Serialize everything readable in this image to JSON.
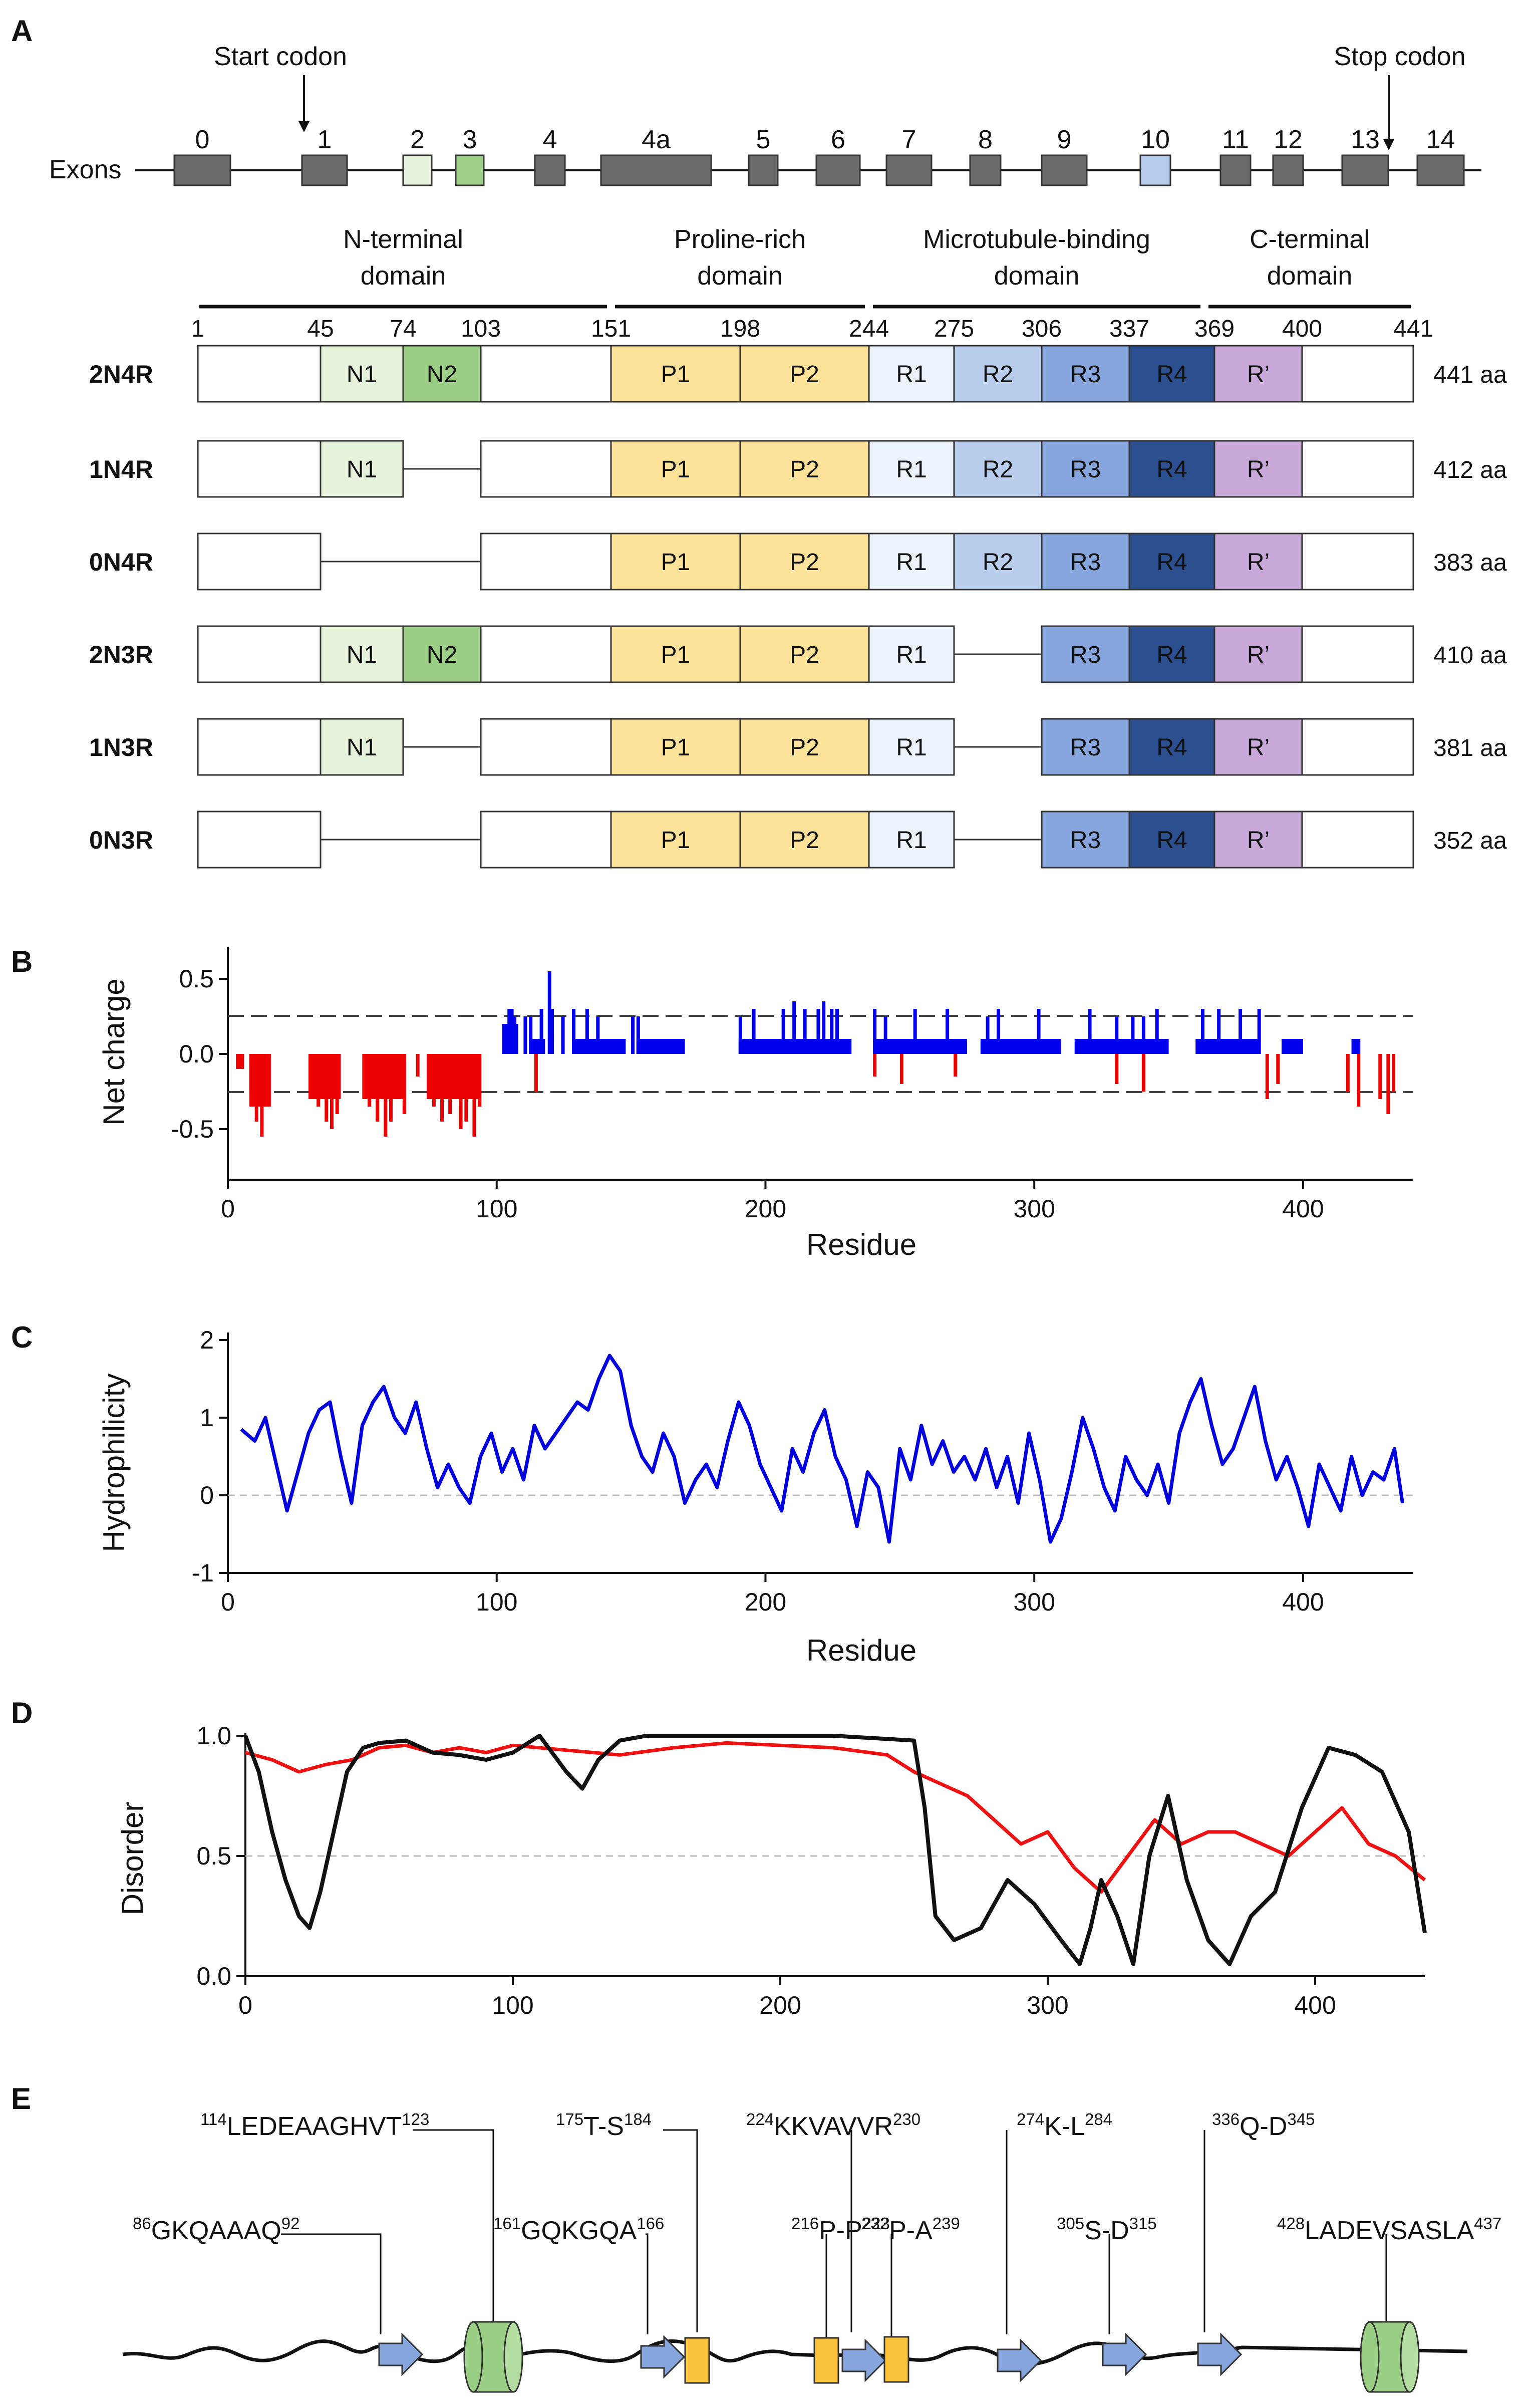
{
  "panels": {
    "A": {
      "label": "A",
      "start_codon": "Start codon",
      "stop_codon": "Stop codon",
      "exons_label": "Exons",
      "exons": [
        {
          "label": "0",
          "color": "#6b6b6b"
        },
        {
          "label": "1",
          "color": "#6b6b6b"
        },
        {
          "label": "2",
          "color": "#e8f3dd"
        },
        {
          "label": "3",
          "color": "#9fd08a"
        },
        {
          "label": "4",
          "color": "#6b6b6b"
        },
        {
          "label": "4a",
          "color": "#6b6b6b"
        },
        {
          "label": "5",
          "color": "#6b6b6b"
        },
        {
          "label": "6",
          "color": "#6b6b6b"
        },
        {
          "label": "7",
          "color": "#6b6b6b"
        },
        {
          "label": "8",
          "color": "#6b6b6b"
        },
        {
          "label": "9",
          "color": "#6b6b6b"
        },
        {
          "label": "10",
          "color": "#b7cdee"
        },
        {
          "label": "11",
          "color": "#6b6b6b"
        },
        {
          "label": "12",
          "color": "#6b6b6b"
        },
        {
          "label": "13",
          "color": "#6b6b6b"
        },
        {
          "label": "14",
          "color": "#6b6b6b"
        }
      ],
      "domains": [
        {
          "line1": "N-terminal",
          "line2": "domain"
        },
        {
          "line1": "Proline-rich",
          "line2": "domain"
        },
        {
          "line1": "Microtubule-binding",
          "line2": "domain"
        },
        {
          "line1": "C-terminal",
          "line2": "domain"
        }
      ],
      "residue_marks": [
        "1",
        "45",
        "74",
        "103",
        "151",
        "198",
        "244",
        "275",
        "306",
        "337",
        "369",
        "400",
        "441"
      ],
      "isoforms": [
        {
          "name": "2N4R",
          "length": "441 aa",
          "segments": [
            "N1",
            "N2",
            "P1",
            "P2",
            "R1",
            "R2",
            "R3",
            "R4",
            "R’"
          ]
        },
        {
          "name": "1N4R",
          "length": "412 aa",
          "segments": [
            "N1",
            "P1",
            "P2",
            "R1",
            "R2",
            "R3",
            "R4",
            "R’"
          ]
        },
        {
          "name": "0N4R",
          "length": "383 aa",
          "segments": [
            "P1",
            "P2",
            "R1",
            "R2",
            "R3",
            "R4",
            "R’"
          ]
        },
        {
          "name": "2N3R",
          "length": "410 aa",
          "segments": [
            "N1",
            "N2",
            "P1",
            "P2",
            "R1",
            "R3",
            "R4",
            "R’"
          ]
        },
        {
          "name": "1N3R",
          "length": "381 aa",
          "segments": [
            "N1",
            "P1",
            "P2",
            "R1",
            "R3",
            "R4",
            "R’"
          ]
        },
        {
          "name": "0N3R",
          "length": "352 aa",
          "segments": [
            "P1",
            "P2",
            "R1",
            "R3",
            "R4",
            "R’"
          ]
        }
      ],
      "segment_colors": {
        "N1": "#e6f2d9",
        "N2": "#9ccf86",
        "P1": "#fde39a",
        "P2": "#fde39a",
        "R1": "#edf3fb",
        "R2": "#b9cdec",
        "R3": "#86a6dd",
        "R4": "#2c4f8f",
        "R’": "#c9a9d9"
      }
    },
    "B": {
      "label": "B",
      "xlabel": "Residue",
      "ylabel": "Net charge"
    },
    "C": {
      "label": "C",
      "xlabel": "Residue",
      "ylabel": "Hydrophilicity"
    },
    "D": {
      "label": "D",
      "ylabel": "Disorder"
    },
    "E": {
      "label": "E",
      "annotations": [
        {
          "pre": "114",
          "seq": "LEDEAAGHVT",
          "post": "123"
        },
        {
          "pre": "175",
          "seq": "T-S",
          "post": "184"
        },
        {
          "pre": "224",
          "seq": "KKVAVVR",
          "post": "230"
        },
        {
          "pre": "274",
          "seq": "K-L",
          "post": "284"
        },
        {
          "pre": "336",
          "seq": "Q-D",
          "post": "345"
        },
        {
          "pre": "86",
          "seq": "GKQAAAQ",
          "post": "92"
        },
        {
          "pre": "161",
          "seq": "GQKGQA",
          "post": "166"
        },
        {
          "pre": "216",
          "seq": "P-P",
          "post": "223"
        },
        {
          "pre": "232",
          "seq": "P-A",
          "post": "239"
        },
        {
          "pre": "305",
          "seq": "S-D",
          "post": "315"
        },
        {
          "pre": "428",
          "seq": "LADEVSASLA",
          "post": "437"
        }
      ]
    }
  },
  "chart_data": [
    {
      "type": "bar",
      "panel": "B",
      "xlabel": "Residue",
      "ylabel": "Net charge",
      "xlim": [
        0,
        441
      ],
      "ylim": [
        -0.65,
        0.65
      ],
      "xticks": [
        "0",
        "100",
        "200",
        "300",
        "400"
      ],
      "yticks": [
        "0.5",
        "0.0",
        "-0.5"
      ],
      "reference_lines": [
        0.25,
        -0.25
      ],
      "colors": {
        "positive": "#0000ee",
        "negative": "#ee0000"
      },
      "positive_bars": [
        [
          104,
          0.3
        ],
        [
          105,
          0.3
        ],
        [
          106,
          0.25
        ],
        [
          110,
          0.25
        ],
        [
          112,
          0.25
        ],
        [
          116,
          0.3
        ],
        [
          119,
          0.55
        ],
        [
          120,
          0.3
        ],
        [
          124,
          0.25
        ],
        [
          128,
          0.3
        ],
        [
          133,
          0.3
        ],
        [
          137,
          0.25
        ],
        [
          150,
          0.25
        ],
        [
          152,
          0.25
        ],
        [
          190,
          0.25
        ],
        [
          195,
          0.3
        ],
        [
          206,
          0.3
        ],
        [
          210,
          0.35
        ],
        [
          214,
          0.3
        ],
        [
          219,
          0.3
        ],
        [
          221,
          0.35
        ],
        [
          224,
          0.3
        ],
        [
          226,
          0.3
        ],
        [
          240,
          0.3
        ],
        [
          244,
          0.25
        ],
        [
          255,
          0.3
        ],
        [
          267,
          0.3
        ],
        [
          282,
          0.25
        ],
        [
          286,
          0.3
        ],
        [
          301,
          0.3
        ],
        [
          320,
          0.3
        ],
        [
          330,
          0.25
        ],
        [
          336,
          0.25
        ],
        [
          340,
          0.25
        ],
        [
          345,
          0.3
        ],
        [
          362,
          0.3
        ],
        [
          368,
          0.3
        ],
        [
          376,
          0.3
        ],
        [
          383,
          0.3
        ],
        [
          420,
          0.1
        ]
      ],
      "negative_bars": [
        [
          8,
          -0.25
        ],
        [
          10,
          -0.45
        ],
        [
          12,
          -0.55
        ],
        [
          14,
          -0.35
        ],
        [
          30,
          -0.25
        ],
        [
          33,
          -0.35
        ],
        [
          36,
          -0.45
        ],
        [
          38,
          -0.5
        ],
        [
          40,
          -0.4
        ],
        [
          52,
          -0.35
        ],
        [
          55,
          -0.45
        ],
        [
          58,
          -0.55
        ],
        [
          60,
          -0.45
        ],
        [
          63,
          -0.3
        ],
        [
          65,
          -0.4
        ],
        [
          70,
          -0.15
        ],
        [
          76,
          -0.35
        ],
        [
          79,
          -0.45
        ],
        [
          82,
          -0.4
        ],
        [
          86,
          -0.5
        ],
        [
          88,
          -0.45
        ],
        [
          91,
          -0.55
        ],
        [
          93,
          -0.35
        ],
        [
          114,
          -0.25
        ],
        [
          240,
          -0.15
        ],
        [
          250,
          -0.2
        ],
        [
          270,
          -0.15
        ],
        [
          330,
          -0.2
        ],
        [
          340,
          -0.25
        ],
        [
          386,
          -0.3
        ],
        [
          390,
          -0.2
        ],
        [
          416,
          -0.25
        ],
        [
          420,
          -0.35
        ],
        [
          428,
          -0.3
        ],
        [
          431,
          -0.4
        ],
        [
          433,
          -0.25
        ]
      ]
    },
    {
      "type": "line",
      "panel": "C",
      "xlabel": "Residue",
      "ylabel": "Hydrophilicity",
      "xlim": [
        0,
        441
      ],
      "ylim": [
        -1,
        2
      ],
      "xticks": [
        "0",
        "100",
        "200",
        "300",
        "400"
      ],
      "yticks": [
        "2",
        "1",
        "0",
        "-1"
      ],
      "reference_line": 0,
      "series": [
        {
          "color": "#0000dd",
          "x": [
            5,
            10,
            14,
            18,
            22,
            26,
            30,
            34,
            38,
            42,
            46,
            50,
            54,
            58,
            62,
            66,
            70,
            74,
            78,
            82,
            86,
            90,
            94,
            98,
            102,
            106,
            110,
            114,
            118,
            122,
            126,
            130,
            134,
            138,
            142,
            146,
            150,
            154,
            158,
            162,
            166,
            170,
            174,
            178,
            182,
            186,
            190,
            194,
            198,
            202,
            206,
            210,
            214,
            218,
            222,
            226,
            230,
            234,
            238,
            242,
            246,
            250,
            254,
            258,
            262,
            266,
            270,
            274,
            278,
            282,
            286,
            290,
            294,
            298,
            302,
            306,
            310,
            314,
            318,
            322,
            326,
            330,
            334,
            338,
            342,
            346,
            350,
            354,
            358,
            362,
            366,
            370,
            374,
            378,
            382,
            386,
            390,
            394,
            398,
            402,
            406,
            410,
            414,
            418,
            422,
            426,
            430,
            434,
            437
          ],
          "y": [
            0.85,
            0.7,
            1.0,
            0.4,
            -0.2,
            0.3,
            0.8,
            1.1,
            1.2,
            0.5,
            -0.1,
            0.9,
            1.2,
            1.4,
            1.0,
            0.8,
            1.2,
            0.6,
            0.1,
            0.4,
            0.1,
            -0.1,
            0.5,
            0.8,
            0.3,
            0.6,
            0.2,
            0.9,
            0.6,
            0.8,
            1.0,
            1.2,
            1.1,
            1.5,
            1.8,
            1.6,
            0.9,
            0.5,
            0.3,
            0.8,
            0.5,
            -0.1,
            0.2,
            0.4,
            0.1,
            0.7,
            1.2,
            0.9,
            0.4,
            0.1,
            -0.2,
            0.6,
            0.3,
            0.8,
            1.1,
            0.5,
            0.2,
            -0.4,
            0.3,
            0.1,
            -0.6,
            0.6,
            0.2,
            0.9,
            0.4,
            0.7,
            0.3,
            0.5,
            0.2,
            0.6,
            0.1,
            0.5,
            -0.1,
            0.8,
            0.2,
            -0.6,
            -0.3,
            0.3,
            1.0,
            0.6,
            0.1,
            -0.2,
            0.5,
            0.2,
            0.0,
            0.4,
            -0.1,
            0.8,
            1.2,
            1.5,
            0.9,
            0.4,
            0.6,
            1.0,
            1.4,
            0.7,
            0.2,
            0.5,
            0.1,
            -0.4,
            0.4,
            0.1,
            -0.2,
            0.5,
            0.0,
            0.3,
            0.2,
            0.6,
            -0.1
          ]
        }
      ]
    },
    {
      "type": "line",
      "panel": "D",
      "ylabel": "Disorder",
      "xlim": [
        0,
        441
      ],
      "ylim": [
        0,
        1
      ],
      "xticks": [
        "0",
        "100",
        "200",
        "300",
        "400"
      ],
      "yticks": [
        "1.0",
        "0.5",
        "0.0"
      ],
      "reference_line": 0.5,
      "series": [
        {
          "color": "#111111",
          "x": [
            0,
            5,
            10,
            15,
            20,
            24,
            28,
            33,
            38,
            44,
            50,
            60,
            70,
            80,
            90,
            100,
            110,
            120,
            126,
            132,
            140,
            150,
            180,
            220,
            250,
            254,
            258,
            265,
            275,
            285,
            295,
            305,
            312,
            316,
            320,
            326,
            332,
            338,
            345,
            352,
            360,
            368,
            376,
            385,
            395,
            405,
            415,
            425,
            435,
            441
          ],
          "y": [
            1.0,
            0.85,
            0.6,
            0.4,
            0.25,
            0.2,
            0.35,
            0.6,
            0.85,
            0.95,
            0.97,
            0.98,
            0.93,
            0.92,
            0.9,
            0.93,
            1.0,
            0.85,
            0.78,
            0.9,
            0.98,
            1.0,
            1.0,
            1.0,
            0.98,
            0.7,
            0.25,
            0.15,
            0.2,
            0.4,
            0.3,
            0.15,
            0.05,
            0.2,
            0.4,
            0.25,
            0.05,
            0.5,
            0.75,
            0.4,
            0.15,
            0.05,
            0.25,
            0.35,
            0.7,
            0.95,
            0.92,
            0.85,
            0.6,
            0.18
          ]
        },
        {
          "color": "#ee1111",
          "x": [
            0,
            10,
            20,
            30,
            40,
            50,
            60,
            70,
            80,
            90,
            100,
            120,
            140,
            160,
            180,
            200,
            220,
            240,
            250,
            260,
            270,
            280,
            290,
            300,
            310,
            320,
            330,
            340,
            350,
            360,
            370,
            380,
            390,
            400,
            410,
            420,
            430,
            441
          ],
          "y": [
            0.93,
            0.9,
            0.85,
            0.88,
            0.9,
            0.95,
            0.96,
            0.93,
            0.95,
            0.93,
            0.96,
            0.94,
            0.92,
            0.95,
            0.97,
            0.96,
            0.95,
            0.92,
            0.85,
            0.8,
            0.75,
            0.65,
            0.55,
            0.6,
            0.45,
            0.35,
            0.5,
            0.65,
            0.55,
            0.6,
            0.6,
            0.55,
            0.5,
            0.6,
            0.7,
            0.55,
            0.5,
            0.4
          ]
        }
      ]
    }
  ]
}
